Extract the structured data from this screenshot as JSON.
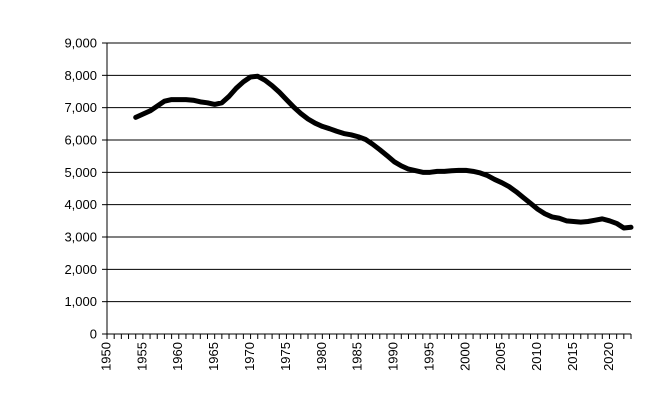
{
  "chart_data": {
    "type": "line",
    "title": "",
    "xlabel": "",
    "ylabel": "",
    "xlim": [
      1950,
      2023
    ],
    "ylim": [
      0,
      9000
    ],
    "grid": "horizontal",
    "legend": "none",
    "colors": {
      "line": "#000000",
      "grid": "#000000",
      "axis": "#000000"
    },
    "y_ticks": [
      {
        "value": 0,
        "label": "0"
      },
      {
        "value": 1000,
        "label": "1,000"
      },
      {
        "value": 2000,
        "label": "2,000"
      },
      {
        "value": 3000,
        "label": "3,000"
      },
      {
        "value": 4000,
        "label": "4,000"
      },
      {
        "value": 5000,
        "label": "5,000"
      },
      {
        "value": 6000,
        "label": "6,000"
      },
      {
        "value": 7000,
        "label": "7,000"
      },
      {
        "value": 8000,
        "label": "8,000"
      },
      {
        "value": 9000,
        "label": "9,000"
      }
    ],
    "x_ticks": [
      {
        "value": 1950,
        "label": "1950"
      },
      {
        "value": 1955,
        "label": "1955"
      },
      {
        "value": 1960,
        "label": "1960"
      },
      {
        "value": 1965,
        "label": "1965"
      },
      {
        "value": 1970,
        "label": "1970"
      },
      {
        "value": 1975,
        "label": "1975"
      },
      {
        "value": 1980,
        "label": "1980"
      },
      {
        "value": 1985,
        "label": "1985"
      },
      {
        "value": 1990,
        "label": "1990"
      },
      {
        "value": 1995,
        "label": "1995"
      },
      {
        "value": 2000,
        "label": "2000"
      },
      {
        "value": 2005,
        "label": "2005"
      },
      {
        "value": 2010,
        "label": "2010"
      },
      {
        "value": 2015,
        "label": "2015"
      },
      {
        "value": 2020,
        "label": "2020"
      }
    ],
    "series": [
      {
        "x": [
          1954,
          1955,
          1956,
          1957,
          1958,
          1959,
          1960,
          1961,
          1962,
          1963,
          1964,
          1965,
          1966,
          1967,
          1968,
          1969,
          1970,
          1971,
          1972,
          1973,
          1974,
          1975,
          1976,
          1977,
          1978,
          1979,
          1980,
          1981,
          1982,
          1983,
          1984,
          1985,
          1986,
          1987,
          1988,
          1989,
          1990,
          1991,
          1992,
          1993,
          1994,
          1995,
          1996,
          1997,
          1998,
          1999,
          2000,
          2001,
          2002,
          2003,
          2004,
          2005,
          2006,
          2007,
          2008,
          2009,
          2010,
          2011,
          2012,
          2013,
          2014,
          2015,
          2016,
          2017,
          2018,
          2019,
          2020,
          2021,
          2022,
          2023
        ],
        "values": [
          6700,
          6800,
          6900,
          7050,
          7200,
          7250,
          7250,
          7250,
          7230,
          7180,
          7150,
          7100,
          7150,
          7350,
          7600,
          7800,
          7950,
          7970,
          7850,
          7680,
          7480,
          7250,
          7020,
          6820,
          6650,
          6520,
          6420,
          6350,
          6270,
          6200,
          6160,
          6100,
          6020,
          5870,
          5700,
          5520,
          5330,
          5200,
          5100,
          5050,
          5000,
          5000,
          5030,
          5030,
          5050,
          5060,
          5060,
          5030,
          4980,
          4900,
          4780,
          4680,
          4560,
          4400,
          4220,
          4040,
          3860,
          3720,
          3620,
          3580,
          3500,
          3480,
          3460,
          3480,
          3520,
          3560,
          3500,
          3420,
          3280,
          3300
        ]
      }
    ]
  }
}
